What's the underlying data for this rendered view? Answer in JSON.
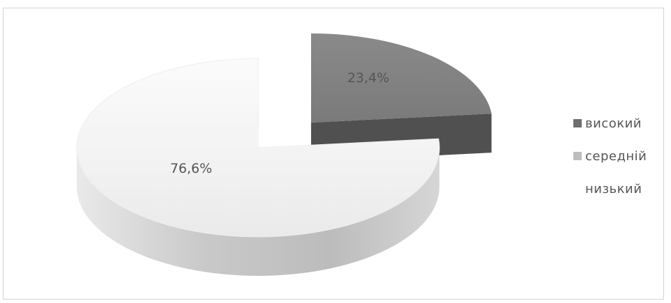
{
  "chart_data": {
    "type": "pie",
    "style": "3d-exploded",
    "categories": [
      "високий",
      "середній",
      "низький"
    ],
    "values": [
      23.4,
      76.6,
      0
    ],
    "data_labels": [
      "23,4%",
      "76,6%",
      ""
    ],
    "colors": [
      "#7b7b7b",
      "#f3f3f3",
      "#ffffff"
    ],
    "legend": {
      "placement": "right",
      "entries": [
        {
          "label": "високий",
          "color": "#6e6e6e"
        },
        {
          "label": "середній",
          "color": "#bdbdbd"
        },
        {
          "label": "низький",
          "color": "#ffffff"
        }
      ]
    }
  }
}
